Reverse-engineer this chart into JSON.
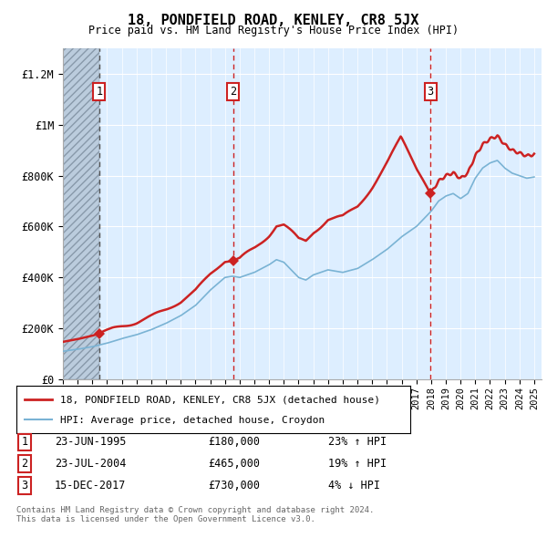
{
  "title": "18, PONDFIELD ROAD, KENLEY, CR8 5JX",
  "subtitle": "Price paid vs. HM Land Registry's House Price Index (HPI)",
  "legend_line1": "18, PONDFIELD ROAD, KENLEY, CR8 5JX (detached house)",
  "legend_line2": "HPI: Average price, detached house, Croydon",
  "transactions": [
    {
      "num": 1,
      "date": "23-JUN-1995",
      "price": 180000,
      "pct": "23%",
      "dir": "↑",
      "year": 1995.47
    },
    {
      "num": 2,
      "date": "23-JUL-2004",
      "price": 465000,
      "pct": "19%",
      "dir": "↑",
      "year": 2004.55
    },
    {
      "num": 3,
      "date": "15-DEC-2017",
      "price": 730000,
      "pct": "4%",
      "dir": "↓",
      "year": 2017.95
    }
  ],
  "footer1": "Contains HM Land Registry data © Crown copyright and database right 2024.",
  "footer2": "This data is licensed under the Open Government Licence v3.0.",
  "ylim": [
    0,
    1300000
  ],
  "yticks": [
    0,
    200000,
    400000,
    600000,
    800000,
    1000000,
    1200000
  ],
  "ytick_labels": [
    "£0",
    "£200K",
    "£400K",
    "£600K",
    "£800K",
    "£1M",
    "£1.2M"
  ],
  "xmin": 1993.0,
  "xmax": 2025.5,
  "hpi_color": "#7ab3d4",
  "price_color": "#cc2222",
  "dashed_color_1": "#888888",
  "dashed_color_23": "#cc2222",
  "chart_bg": "#ddeeff",
  "hatch_color": "#bbccdd",
  "transaction_box_color": "#cc2222"
}
